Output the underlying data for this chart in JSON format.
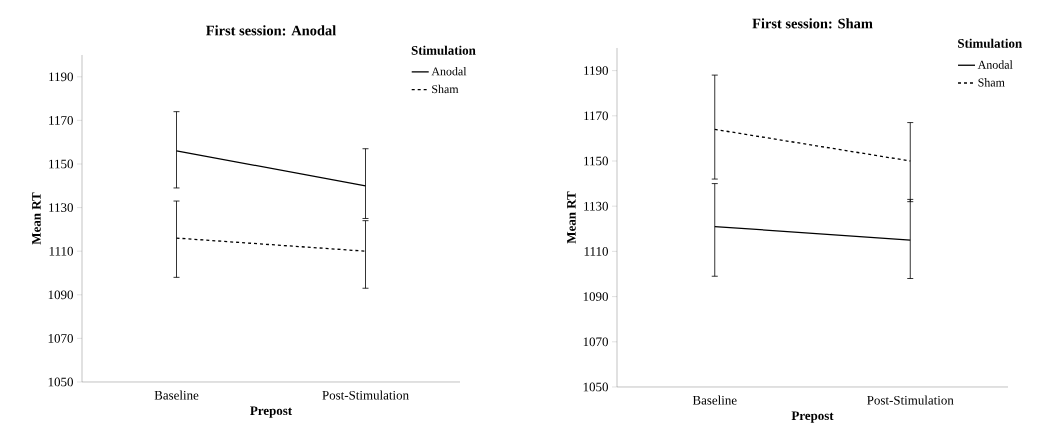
{
  "chart_data": [
    {
      "type": "line",
      "title": "First session: Anodal",
      "xlabel": "Prepost",
      "ylabel": "Mean RT",
      "legend_title": "Stimulation",
      "legend": "top right",
      "categories": [
        "Baseline",
        "Post-Stimulation"
      ],
      "series": [
        {
          "name": "Anodal",
          "color": "#000000",
          "line_style": "solid",
          "values": [
            1156,
            1140
          ],
          "errors": [
            [
              1139,
              1174
            ],
            [
              1125,
              1157
            ]
          ]
        },
        {
          "name": "Sham",
          "color": "#000000",
          "line_style": "dashed",
          "values": [
            1116,
            1110
          ],
          "errors": [
            [
              1098,
              1133
            ],
            [
              1093,
              1124
            ]
          ]
        }
      ],
      "ylim": [
        1050,
        1200
      ],
      "yticks": [
        1050,
        1070,
        1090,
        1110,
        1130,
        1150,
        1170,
        1190
      ]
    },
    {
      "type": "line",
      "title": "First session: Sham",
      "xlabel": "Prepost",
      "ylabel": "Mean RT",
      "legend_title": "Stimulation",
      "legend": "top right",
      "categories": [
        "Baseline",
        "Post-Stimulation"
      ],
      "series": [
        {
          "name": "Anodal",
          "color": "#000000",
          "line_style": "solid",
          "values": [
            1121,
            1115
          ],
          "errors": [
            [
              1099,
              1140
            ],
            [
              1098,
              1133
            ]
          ]
        },
        {
          "name": "Sham",
          "color": "#000000",
          "line_style": "dashed",
          "values": [
            1164,
            1150
          ],
          "errors": [
            [
              1142,
              1188
            ],
            [
              1132,
              1167
            ]
          ]
        }
      ],
      "ylim": [
        1050,
        1200
      ],
      "yticks": [
        1050,
        1070,
        1090,
        1110,
        1130,
        1150,
        1170,
        1190
      ]
    }
  ]
}
